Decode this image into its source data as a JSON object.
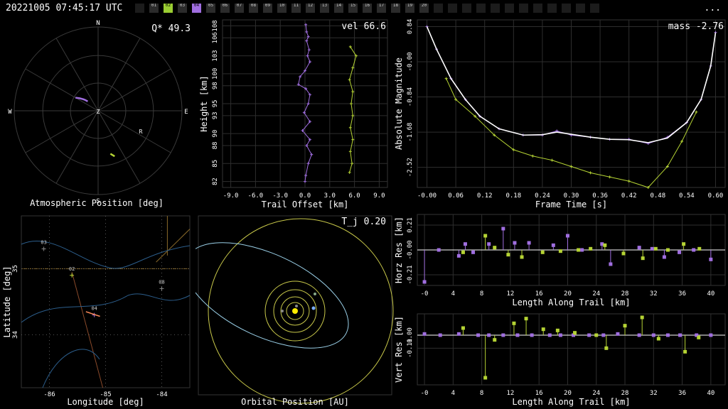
{
  "timestamp": "20221005 07:45:17 UTC",
  "menu_label": "...",
  "stations": [
    {
      "label": "",
      "state": "off"
    },
    {
      "label": "01",
      "state": "idle"
    },
    {
      "label": "02",
      "state": "green"
    },
    {
      "label": "03",
      "state": "idle"
    },
    {
      "label": "04",
      "state": "purple"
    },
    {
      "label": "05",
      "state": "idle"
    },
    {
      "label": "06",
      "state": "idle"
    },
    {
      "label": "07",
      "state": "idle"
    },
    {
      "label": "08",
      "state": "idle"
    },
    {
      "label": "09",
      "state": "idle"
    },
    {
      "label": "10",
      "state": "idle"
    },
    {
      "label": "11",
      "state": "idle"
    },
    {
      "label": "12",
      "state": "idle"
    },
    {
      "label": "13",
      "state": "idle"
    },
    {
      "label": "14",
      "state": "idle"
    },
    {
      "label": "15",
      "state": "idle"
    },
    {
      "label": "16",
      "state": "idle"
    },
    {
      "label": "17",
      "state": "idle"
    },
    {
      "label": "18",
      "state": "idle"
    },
    {
      "label": "19",
      "state": "idle"
    },
    {
      "label": "20",
      "state": "idle"
    },
    {
      "label": "",
      "state": "off"
    },
    {
      "label": "",
      "state": "off"
    },
    {
      "label": "",
      "state": "off"
    },
    {
      "label": "",
      "state": "off"
    },
    {
      "label": "",
      "state": "off"
    },
    {
      "label": "",
      "state": "off"
    },
    {
      "label": "",
      "state": "off"
    },
    {
      "label": "",
      "state": "off"
    },
    {
      "label": "",
      "state": "off"
    },
    {
      "label": "",
      "state": "off"
    },
    {
      "label": "",
      "state": "off"
    },
    {
      "label": "",
      "state": "off"
    }
  ],
  "colors": {
    "green": "#b5d334",
    "purple": "#a06ee0",
    "grid": "#2e2e2e",
    "axis": "#ffffff",
    "map": "#2c5e8c",
    "orbit_earth": "#7aaeff",
    "orbit_body": "#9ad0e8",
    "orbit_planets": "#c9c94a"
  },
  "chart_data": [
    {
      "id": "polar",
      "type": "scatter",
      "title": "Q* 49.3",
      "xlabel": "Atmospheric Position [deg]",
      "directions": [
        "N",
        "E",
        "S",
        "W"
      ],
      "station_marks": [
        "Z",
        "R"
      ],
      "series": [
        {
          "name": "04",
          "color": "purple",
          "points": [
            [
              300,
              62
            ],
            [
              302,
              64
            ],
            [
              304,
              66
            ],
            [
              306,
              68
            ],
            [
              308,
              70
            ],
            [
              310,
              72
            ],
            [
              312,
              75
            ]
          ]
        },
        {
          "name": "02",
          "color": "green",
          "points": [
            [
              160,
              38
            ],
            [
              161,
              39
            ],
            [
              162,
              40
            ],
            [
              163,
              41
            ],
            [
              164,
              42
            ]
          ]
        }
      ]
    },
    {
      "id": "height",
      "type": "line",
      "title": "vel 66.6",
      "xlabel": "Trail Offset [km]",
      "ylabel": "Height [km]",
      "xlim": [
        -10,
        10
      ],
      "ylim": [
        81,
        109
      ],
      "xticks": [
        "-9.0",
        "-6.0",
        "-3.0",
        "0.0",
        "3.0",
        "6.0",
        "9.0"
      ],
      "yticks": [
        "82",
        "85",
        "88",
        "90",
        "93",
        "95",
        "98",
        "100",
        "103",
        "106",
        "108"
      ],
      "series": [
        {
          "name": "04",
          "color": "purple",
          "points": [
            [
              0.1,
              108.2
            ],
            [
              0.2,
              107.0
            ],
            [
              0.4,
              106.2
            ],
            [
              0.2,
              105.5
            ],
            [
              0.5,
              104.0
            ],
            [
              0.3,
              103.0
            ],
            [
              0.6,
              102.0
            ],
            [
              0.0,
              100.5
            ],
            [
              -0.6,
              99.5
            ],
            [
              -0.8,
              98.2
            ],
            [
              0.1,
              97.5
            ],
            [
              0.6,
              96.5
            ],
            [
              0.4,
              95.0
            ],
            [
              -0.1,
              93.5
            ],
            [
              0.6,
              92.0
            ],
            [
              -0.3,
              90.5
            ],
            [
              0.6,
              89.0
            ],
            [
              0.2,
              88.0
            ],
            [
              0.8,
              86.5
            ],
            [
              0.4,
              85.0
            ],
            [
              0.1,
              83.0
            ],
            [
              0.0,
              82.0
            ]
          ]
        },
        {
          "name": "02",
          "color": "green",
          "points": [
            [
              5.5,
              104.5
            ],
            [
              6.2,
              103.0
            ],
            [
              5.8,
              101.0
            ],
            [
              5.4,
              99.0
            ],
            [
              5.8,
              97.0
            ],
            [
              5.6,
              95.0
            ],
            [
              5.8,
              93.0
            ],
            [
              5.5,
              91.0
            ],
            [
              5.8,
              89.0
            ],
            [
              5.5,
              87.0
            ],
            [
              5.7,
              85.0
            ],
            [
              5.4,
              83.5
            ]
          ]
        }
      ]
    },
    {
      "id": "magnitude",
      "type": "line",
      "title": "mass -2.76",
      "xlabel": "Frame Time [s]",
      "ylabel": "Absolute Magnitude",
      "xlim": [
        -0.02,
        0.62
      ],
      "ylim": [
        -3.0,
        1.0
      ],
      "xticks": [
        "-0.00",
        "0.06",
        "0.12",
        "0.18",
        "0.24",
        "0.30",
        "0.36",
        "0.42",
        "0.48",
        "0.54",
        "0.60"
      ],
      "yticks": [
        "-2.52",
        "-1.68",
        "-0.84",
        "-0.00",
        "0.84"
      ],
      "series": [
        {
          "name": "04",
          "color": "purple",
          "points": [
            [
              0.0,
              0.84
            ],
            [
              0.02,
              0.3
            ],
            [
              0.05,
              -0.4
            ],
            [
              0.08,
              -0.9
            ],
            [
              0.11,
              -1.3
            ],
            [
              0.15,
              -1.6
            ],
            [
              0.2,
              -1.75
            ],
            [
              0.24,
              -1.75
            ],
            [
              0.27,
              -1.65
            ],
            [
              0.3,
              -1.75
            ],
            [
              0.34,
              -1.8
            ],
            [
              0.38,
              -1.85
            ],
            [
              0.42,
              -1.85
            ],
            [
              0.46,
              -1.95
            ],
            [
              0.5,
              -1.8
            ],
            [
              0.54,
              -1.45
            ],
            [
              0.57,
              -0.9
            ],
            [
              0.59,
              -0.1
            ],
            [
              0.6,
              0.7
            ]
          ]
        },
        {
          "name": "02",
          "color": "green",
          "points": [
            [
              0.04,
              -0.4
            ],
            [
              0.06,
              -0.9
            ],
            [
              0.1,
              -1.3
            ],
            [
              0.14,
              -1.75
            ],
            [
              0.18,
              -2.1
            ],
            [
              0.22,
              -2.25
            ],
            [
              0.26,
              -2.35
            ],
            [
              0.3,
              -2.5
            ],
            [
              0.34,
              -2.65
            ],
            [
              0.38,
              -2.75
            ],
            [
              0.42,
              -2.85
            ],
            [
              0.46,
              -3.0
            ],
            [
              0.5,
              -2.5
            ],
            [
              0.53,
              -1.9
            ],
            [
              0.56,
              -1.2
            ]
          ]
        },
        {
          "name": "fit",
          "color": "white",
          "points": [
            [
              0.0,
              0.84
            ],
            [
              0.02,
              0.3
            ],
            [
              0.05,
              -0.4
            ],
            [
              0.08,
              -0.9
            ],
            [
              0.11,
              -1.3
            ],
            [
              0.15,
              -1.6
            ],
            [
              0.2,
              -1.75
            ],
            [
              0.24,
              -1.74
            ],
            [
              0.27,
              -1.68
            ],
            [
              0.3,
              -1.73
            ],
            [
              0.34,
              -1.8
            ],
            [
              0.38,
              -1.85
            ],
            [
              0.42,
              -1.86
            ],
            [
              0.46,
              -1.93
            ],
            [
              0.5,
              -1.82
            ],
            [
              0.54,
              -1.45
            ],
            [
              0.57,
              -0.9
            ],
            [
              0.59,
              -0.1
            ],
            [
              0.6,
              0.7
            ]
          ]
        }
      ]
    },
    {
      "id": "map",
      "type": "scatter",
      "xlabel": "Longitude [deg]",
      "ylabel": "Latitude [deg]",
      "xlim": [
        -86.5,
        -83.5
      ],
      "ylim": [
        33.2,
        35.8
      ],
      "xticks": [
        "-86",
        "-85",
        "-84"
      ],
      "yticks": [
        "34",
        "35"
      ],
      "station_labels": [
        "03",
        "02",
        "04",
        "08"
      ],
      "stations": [
        {
          "label": "03",
          "lon": -86.1,
          "lat": 35.3
        },
        {
          "label": "02",
          "lon": -85.6,
          "lat": 34.9
        },
        {
          "label": "04",
          "lon": -85.2,
          "lat": 34.3
        },
        {
          "label": "08",
          "lon": -84.0,
          "lat": 34.7
        }
      ]
    },
    {
      "id": "orbit",
      "type": "scatter",
      "title": "T_j 0.20",
      "xlabel": "Orbital Position [AU]"
    },
    {
      "id": "horz",
      "type": "scatter",
      "xlabel": "Length Along Trail [km]",
      "ylabel": "Horz Res [km]",
      "xlim": [
        -1,
        42
      ],
      "ylim": [
        -0.3,
        0.3
      ],
      "xticks": [
        "-0",
        "4",
        "8",
        "12",
        "16",
        "20",
        "24",
        "28",
        "32",
        "36",
        "40"
      ],
      "yticks": [
        "0.21",
        "-0.00",
        "-0.21"
      ],
      "series": [
        {
          "name": "04",
          "color": "purple",
          "points": [
            [
              0,
              -0.27
            ],
            [
              2,
              0.0
            ],
            [
              4.8,
              -0.05
            ],
            [
              5.7,
              0.05
            ],
            [
              6.8,
              -0.02
            ],
            [
              9,
              0.05
            ],
            [
              11,
              0.18
            ],
            [
              12.6,
              0.06
            ],
            [
              14.6,
              0.06
            ],
            [
              18,
              0.04
            ],
            [
              20,
              0.12
            ],
            [
              22,
              0.0
            ],
            [
              24.8,
              0.05
            ],
            [
              26,
              -0.12
            ],
            [
              30,
              0.02
            ],
            [
              31.8,
              0.01
            ],
            [
              33.5,
              -0.06
            ],
            [
              35.6,
              -0.02
            ],
            [
              37.6,
              0.0
            ],
            [
              40,
              -0.08
            ]
          ]
        },
        {
          "name": "02",
          "color": "green",
          "points": [
            [
              5.4,
              -0.02
            ],
            [
              8.5,
              0.12
            ],
            [
              9.8,
              0.02
            ],
            [
              11.7,
              -0.04
            ],
            [
              13.6,
              -0.06
            ],
            [
              16.5,
              -0.02
            ],
            [
              19,
              -0.01
            ],
            [
              21.5,
              0.0
            ],
            [
              23.2,
              0.01
            ],
            [
              25.2,
              0.04
            ],
            [
              27.8,
              -0.03
            ],
            [
              30.5,
              -0.07
            ],
            [
              32.3,
              0.01
            ],
            [
              34,
              0.0
            ],
            [
              36.2,
              0.05
            ],
            [
              38.4,
              0.01
            ]
          ]
        }
      ]
    },
    {
      "id": "vert",
      "type": "scatter",
      "xlabel": "Length Along Trail [km]",
      "ylabel": "Vert Res [km]",
      "xlim": [
        -1,
        42
      ],
      "ylim": [
        -0.42,
        0.18
      ],
      "xticks": [
        "-0",
        "4",
        "8",
        "12",
        "16",
        "20",
        "24",
        "28",
        "32",
        "36",
        "40"
      ],
      "yticks": [
        "0.00",
        "-0.11"
      ],
      "series": [
        {
          "name": "04",
          "color": "purple",
          "points": [
            [
              0,
              0.01
            ],
            [
              2.2,
              0.0
            ],
            [
              4.8,
              0.01
            ],
            [
              7.5,
              0.0
            ],
            [
              9,
              0.0
            ],
            [
              11,
              0.0
            ],
            [
              13,
              0.0
            ],
            [
              15,
              0.0
            ],
            [
              17.5,
              0.0
            ],
            [
              19,
              0.0
            ],
            [
              20.8,
              0.0
            ],
            [
              23,
              0.0
            ],
            [
              25,
              0.0
            ],
            [
              27,
              0.01
            ],
            [
              30,
              0.0
            ],
            [
              32,
              0.0
            ],
            [
              34,
              0.0
            ],
            [
              35.7,
              0.0
            ],
            [
              38,
              0.0
            ],
            [
              40,
              0.0
            ]
          ]
        },
        {
          "name": "02",
          "color": "green",
          "points": [
            [
              5.4,
              0.06
            ],
            [
              8.5,
              -0.36
            ],
            [
              9.8,
              -0.04
            ],
            [
              12.5,
              0.1
            ],
            [
              14.2,
              0.14
            ],
            [
              16.6,
              0.05
            ],
            [
              18.6,
              0.04
            ],
            [
              21,
              0.02
            ],
            [
              24,
              0.0
            ],
            [
              25.4,
              -0.11
            ],
            [
              28,
              0.08
            ],
            [
              30.4,
              0.15
            ],
            [
              32.7,
              -0.03
            ],
            [
              36.4,
              -0.14
            ],
            [
              38.3,
              -0.02
            ]
          ]
        }
      ]
    }
  ]
}
